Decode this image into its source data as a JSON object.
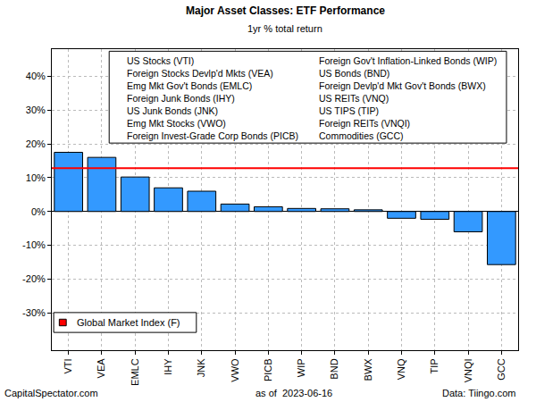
{
  "chart_data": {
    "type": "bar",
    "title": "Major Asset Classes: ETF Performance",
    "subtitle": "1yr % total return",
    "categories": [
      "VTI",
      "VEA",
      "EMLC",
      "IHY",
      "JNK",
      "VWO",
      "PICB",
      "WIP",
      "BND",
      "BWX",
      "VNQ",
      "TIP",
      "VNQI",
      "GCC"
    ],
    "values": [
      17.5,
      16.0,
      10.2,
      7.0,
      6.0,
      2.2,
      1.4,
      0.9,
      0.8,
      0.5,
      -2.0,
      -2.3,
      -6.0,
      -15.7
    ],
    "color": "#3399ff",
    "ylim": [
      -41,
      48
    ],
    "yticks": [
      {
        "value": -30,
        "label": "-30%"
      },
      {
        "value": -20,
        "label": "-20%"
      },
      {
        "value": -10,
        "label": "-10%"
      },
      {
        "value": 0,
        "label": "0%"
      },
      {
        "value": 10,
        "label": "10%"
      },
      {
        "value": 20,
        "label": "20%"
      },
      {
        "value": 30,
        "label": "30%"
      },
      {
        "value": 40,
        "label": "40%"
      }
    ],
    "grid": true,
    "key_labels": [
      "US Stocks (VTI)",
      "Foreign Stocks Devlp'd Mkts (VEA)",
      "Emg Mkt Gov't Bonds (EMLC)",
      "Foreign Junk Bonds (IHY)",
      "US Junk Bonds (JNK)",
      "Emg Mkt Stocks (VWO)",
      "Foreign Invest-Grade Corp Bonds (PICB)",
      "Foreign Gov't Inflation-Linked Bonds (WIP)",
      "US Bonds (BND)",
      "Foreign Devlp'd Mkt Gov't Bonds (BWX)",
      "US REITs (VNQ)",
      "US TIPS (TIP)",
      "Foreign REITs (VNQI)",
      "Commodities (GCC)"
    ],
    "reference_line": {
      "name": "Global Market Index (F)",
      "value": 12.8,
      "color": "#ff0000"
    },
    "legend": "bottom-left",
    "footer_left": "CapitalSpectator.com",
    "footer_center": "as of  2023-06-16",
    "footer_right": "Data: Tiingo.com"
  }
}
